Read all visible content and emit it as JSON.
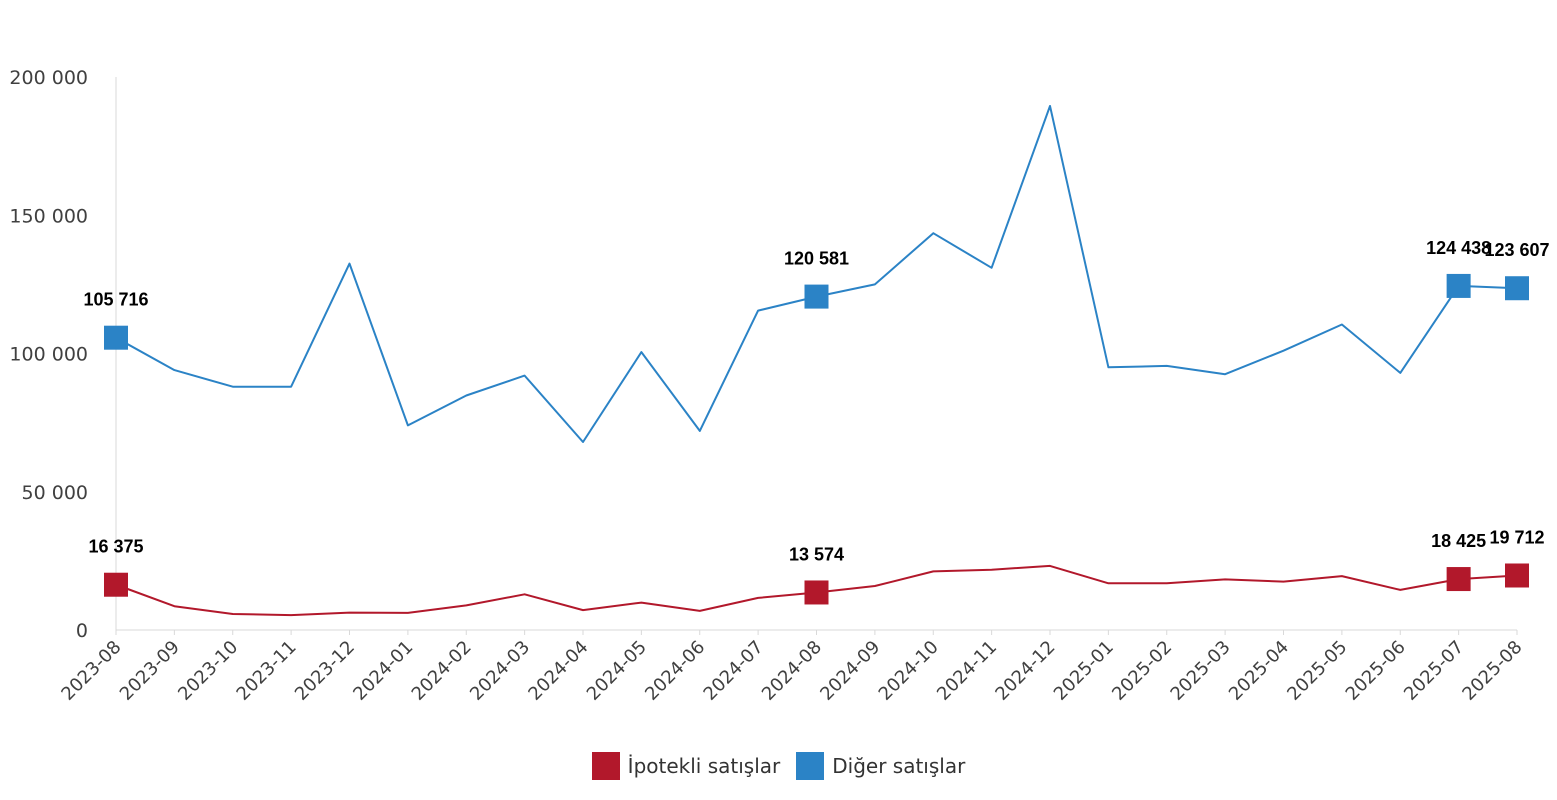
{
  "chart_data": {
    "type": "line",
    "x": [
      "2023-08",
      "2023-09",
      "2023-10",
      "2023-11",
      "2023-12",
      "2024-01",
      "2024-02",
      "2024-03",
      "2024-04",
      "2024-05",
      "2024-06",
      "2024-07",
      "2024-08",
      "2024-09",
      "2024-10",
      "2024-11",
      "2024-12",
      "2025-01",
      "2025-02",
      "2025-03",
      "2025-04",
      "2025-05",
      "2025-06",
      "2025-07",
      "2025-08"
    ],
    "ylim": [
      0,
      200000
    ],
    "yticks": [
      0,
      50000,
      100000,
      150000,
      200000
    ],
    "ytick_labels": [
      "0",
      "50 000",
      "100 000",
      "150 000",
      "200 000"
    ],
    "grid": false,
    "legend_position": "bottom",
    "series": [
      {
        "name": "İpotekli satışlar",
        "color": "#B2182B",
        "values": [
          16375,
          8600,
          5800,
          5400,
          6300,
          6200,
          8900,
          12900,
          7200,
          9900,
          6900,
          11600,
          13574,
          15900,
          21200,
          21800,
          23200,
          16900,
          16900,
          18300,
          17500,
          19500,
          14500,
          18425,
          19712
        ],
        "labeled_points": [
          {
            "index": 0,
            "label": "16 375"
          },
          {
            "index": 12,
            "label": "13 574"
          },
          {
            "index": 23,
            "label": "18 425"
          },
          {
            "index": 24,
            "label": "19 712"
          }
        ]
      },
      {
        "name": "Diğer satışlar",
        "color": "#2B83C6",
        "values": [
          105716,
          94000,
          88000,
          88000,
          132500,
          74000,
          84800,
          92000,
          68000,
          100500,
          72000,
          115500,
          120581,
          125000,
          143500,
          131000,
          189500,
          95000,
          95500,
          92500,
          101000,
          110500,
          93000,
          124438,
          123607
        ],
        "labeled_points": [
          {
            "index": 0,
            "label": "105 716"
          },
          {
            "index": 12,
            "label": "120 581"
          },
          {
            "index": 23,
            "label": "124 438"
          },
          {
            "index": 24,
            "label": "123 607"
          }
        ]
      }
    ]
  }
}
